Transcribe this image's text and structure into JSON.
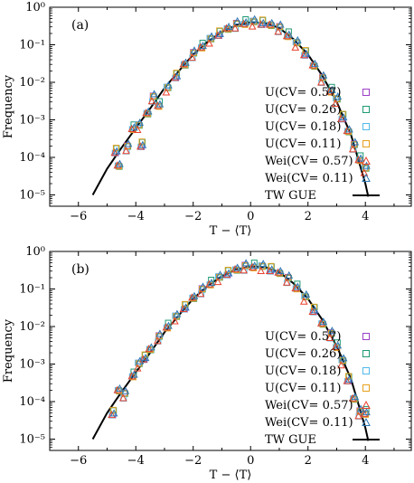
{
  "chart_data": [
    {
      "type": "scatter",
      "panel_label": "(a)",
      "xlabel": "T − ⟨T⟩",
      "ylabel": "Frequency",
      "xlim": [
        -7,
        5.6
      ],
      "ylim": [
        5e-06,
        1
      ],
      "yscale": "log",
      "x_ticks": [
        -6,
        -4,
        -2,
        0,
        2,
        4
      ],
      "x_tick_labels": [
        "−6",
        "−4",
        "−2",
        "0",
        "2",
        "4"
      ],
      "y_tick_labels": [
        "10⁰",
        "10⁻¹",
        "10⁻²",
        "10⁻³",
        "10⁻⁴",
        "10⁻⁵"
      ],
      "legend_position": "center-right",
      "series": [
        {
          "name": "U(CV= 0.57)",
          "marker": "square",
          "color": "#9b3fc6",
          "offset": 0.0
        },
        {
          "name": "U(CV= 0.26)",
          "marker": "square",
          "color": "#1f9a74",
          "offset": 0.07
        },
        {
          "name": "U(CV= 0.18)",
          "marker": "square",
          "color": "#52b9e9",
          "offset": -0.06
        },
        {
          "name": "U(CV= 0.11)",
          "marker": "square",
          "color": "#e6a11d",
          "offset": 0.03
        },
        {
          "name": "Wei(CV= 0.57)",
          "marker": "triangle",
          "color": "#e8412b",
          "offset": -0.1
        },
        {
          "name": "Wei(CV= 0.11)",
          "marker": "triangle",
          "color": "#2a77b4",
          "offset": 0.1
        },
        {
          "name": "TW GUE",
          "marker": "line",
          "color": "#000000"
        }
      ],
      "tw_gue_curve": [
        [
          -5.5,
          1e-05
        ],
        [
          -5.0,
          5e-05
        ],
        [
          -4.5,
          0.00018
        ],
        [
          -4.0,
          0.0006
        ],
        [
          -3.5,
          0.002
        ],
        [
          -3.0,
          0.007
        ],
        [
          -2.5,
          0.02
        ],
        [
          -2.0,
          0.055
        ],
        [
          -1.5,
          0.12
        ],
        [
          -1.0,
          0.22
        ],
        [
          -0.5,
          0.33
        ],
        [
          0.0,
          0.4
        ],
        [
          0.5,
          0.38
        ],
        [
          1.0,
          0.28
        ],
        [
          1.5,
          0.14
        ],
        [
          2.0,
          0.055
        ],
        [
          2.5,
          0.015
        ],
        [
          3.0,
          0.003
        ],
        [
          3.5,
          0.0004
        ],
        [
          4.0,
          2e-05
        ],
        [
          4.1,
          9e-06
        ]
      ],
      "data_points": [
        [
          -4.7,
          0.00015
        ],
        [
          -4.6,
          6e-05
        ],
        [
          -4.3,
          0.00018
        ],
        [
          -4.1,
          0.0006
        ],
        [
          -3.9,
          0.0007
        ],
        [
          -3.8,
          0.00022
        ],
        [
          -3.6,
          0.0015
        ],
        [
          -3.4,
          0.0038
        ],
        [
          -3.2,
          0.0025
        ],
        [
          -2.9,
          0.007
        ],
        [
          -2.6,
          0.015
        ],
        [
          -2.3,
          0.03
        ],
        [
          -2.0,
          0.055
        ],
        [
          -1.7,
          0.09
        ],
        [
          -1.4,
          0.14
        ],
        [
          -1.1,
          0.2
        ],
        [
          -0.8,
          0.27
        ],
        [
          -0.5,
          0.33
        ],
        [
          -0.2,
          0.38
        ],
        [
          0.1,
          0.4
        ],
        [
          0.4,
          0.39
        ],
        [
          0.7,
          0.34
        ],
        [
          1.0,
          0.27
        ],
        [
          1.3,
          0.18
        ],
        [
          1.6,
          0.11
        ],
        [
          1.9,
          0.06
        ],
        [
          2.2,
          0.028
        ],
        [
          2.5,
          0.012
        ],
        [
          2.8,
          0.006
        ],
        [
          3.0,
          0.0035
        ],
        [
          3.2,
          0.0012
        ],
        [
          3.4,
          0.0005
        ],
        [
          3.6,
          0.0002
        ],
        [
          3.8,
          9e-05
        ],
        [
          4.0,
          5e-05
        ]
      ]
    },
    {
      "type": "scatter",
      "panel_label": "(b)",
      "xlabel": "T − ⟨T⟩",
      "ylabel": "Frequency",
      "xlim": [
        -7,
        5.6
      ],
      "ylim": [
        5e-06,
        1
      ],
      "yscale": "log",
      "x_ticks": [
        -6,
        -4,
        -2,
        0,
        2,
        4
      ],
      "x_tick_labels": [
        "−6",
        "−4",
        "−2",
        "0",
        "2",
        "4"
      ],
      "y_tick_labels": [
        "10⁰",
        "10⁻¹",
        "10⁻²",
        "10⁻³",
        "10⁻⁴",
        "10⁻⁵"
      ],
      "legend_position": "center-right",
      "series": [
        {
          "name": "U(CV= 0.57)",
          "marker": "square",
          "color": "#9b3fc6",
          "offset": 0.0
        },
        {
          "name": "U(CV= 0.26)",
          "marker": "square",
          "color": "#1f9a74",
          "offset": 0.07
        },
        {
          "name": "U(CV= 0.18)",
          "marker": "square",
          "color": "#52b9e9",
          "offset": -0.06
        },
        {
          "name": "U(CV= 0.11)",
          "marker": "square",
          "color": "#e6a11d",
          "offset": 0.03
        },
        {
          "name": "Wei(CV= 0.57)",
          "marker": "triangle",
          "color": "#e8412b",
          "offset": -0.1
        },
        {
          "name": "Wei(CV= 0.11)",
          "marker": "triangle",
          "color": "#2a77b4",
          "offset": 0.1
        },
        {
          "name": "TW GUE",
          "marker": "line",
          "color": "#000000"
        }
      ],
      "tw_gue_curve": [
        [
          -5.5,
          1e-05
        ],
        [
          -5.0,
          5e-05
        ],
        [
          -4.5,
          0.00018
        ],
        [
          -4.0,
          0.0006
        ],
        [
          -3.5,
          0.002
        ],
        [
          -3.0,
          0.007
        ],
        [
          -2.5,
          0.02
        ],
        [
          -2.0,
          0.055
        ],
        [
          -1.5,
          0.12
        ],
        [
          -1.0,
          0.22
        ],
        [
          -0.5,
          0.33
        ],
        [
          0.0,
          0.4
        ],
        [
          0.5,
          0.38
        ],
        [
          1.0,
          0.28
        ],
        [
          1.5,
          0.14
        ],
        [
          2.0,
          0.055
        ],
        [
          2.5,
          0.015
        ],
        [
          3.0,
          0.003
        ],
        [
          3.5,
          0.0004
        ],
        [
          4.0,
          2e-05
        ],
        [
          4.1,
          9e-06
        ]
      ],
      "data_points": [
        [
          -4.8,
          5e-05
        ],
        [
          -4.6,
          0.0002
        ],
        [
          -4.4,
          0.00015
        ],
        [
          -4.1,
          0.0005
        ],
        [
          -3.9,
          0.001
        ],
        [
          -3.7,
          0.0015
        ],
        [
          -3.5,
          0.0025
        ],
        [
          -3.2,
          0.005
        ],
        [
          -2.9,
          0.01
        ],
        [
          -2.6,
          0.018
        ],
        [
          -2.3,
          0.033
        ],
        [
          -2.0,
          0.058
        ],
        [
          -1.7,
          0.09
        ],
        [
          -1.4,
          0.14
        ],
        [
          -1.1,
          0.2
        ],
        [
          -0.8,
          0.27
        ],
        [
          -0.5,
          0.33
        ],
        [
          -0.2,
          0.38
        ],
        [
          0.1,
          0.4
        ],
        [
          0.4,
          0.39
        ],
        [
          0.7,
          0.34
        ],
        [
          1.0,
          0.27
        ],
        [
          1.3,
          0.18
        ],
        [
          1.6,
          0.11
        ],
        [
          1.9,
          0.06
        ],
        [
          2.2,
          0.028
        ],
        [
          2.5,
          0.012
        ],
        [
          2.8,
          0.006
        ],
        [
          3.0,
          0.003
        ],
        [
          3.2,
          0.0012
        ],
        [
          3.4,
          0.0004
        ],
        [
          3.6,
          0.00012
        ],
        [
          3.8,
          5e-05
        ],
        [
          4.0,
          5e-05
        ]
      ]
    }
  ]
}
